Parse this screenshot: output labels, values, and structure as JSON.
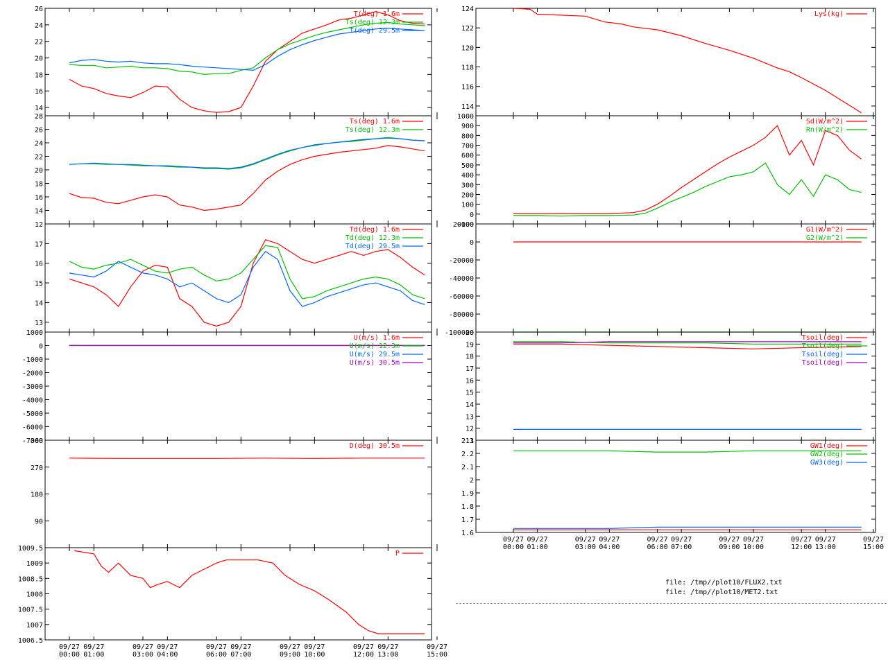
{
  "x_ticks": [
    {
      "date": "09/27",
      "time": "00:00"
    },
    {
      "date": "09/27",
      "time": "01:00"
    },
    {
      "date": "09/27",
      "time": "03:00"
    },
    {
      "date": "09/27",
      "time": "04:00"
    },
    {
      "date": "09/27",
      "time": "06:00"
    },
    {
      "date": "09/27",
      "time": "07:00"
    },
    {
      "date": "09/27",
      "time": "09:00"
    },
    {
      "date": "09/27",
      "time": "10:00"
    },
    {
      "date": "09/27",
      "time": "12:00"
    },
    {
      "date": "09/27",
      "time": "13:00"
    },
    {
      "date": "09/27",
      "time": "15:00"
    }
  ],
  "x_tick_hours": [
    0,
    1,
    3,
    4,
    6,
    7,
    9,
    10,
    12,
    13,
    15
  ],
  "files": [
    "file: /tmp//plot10/FLUX2.txt",
    "file: /tmp//plot10/MET2.txt"
  ],
  "chart_data": [
    {
      "type": "line",
      "column": "left",
      "ylim": [
        13,
        26
      ],
      "yticks": [
        "14",
        "16",
        "18",
        "20",
        "22",
        "24",
        "26"
      ],
      "x": [
        0,
        0.5,
        1,
        1.5,
        2,
        2.5,
        3,
        3.5,
        4,
        4.5,
        5,
        5.5,
        6,
        6.5,
        7,
        7.5,
        8,
        8.5,
        9,
        9.5,
        10,
        10.5,
        11,
        11.5,
        12,
        12.5,
        13,
        13.5,
        14,
        14.5
      ],
      "series": [
        {
          "name": "T(deg)  1.6m",
          "color": "#ff0000",
          "values": [
            17.4,
            16.6,
            16.3,
            15.7,
            15.4,
            15.2,
            15.8,
            16.6,
            16.5,
            15.0,
            14.0,
            13.6,
            13.4,
            13.5,
            14.0,
            16.6,
            19.6,
            21.0,
            22.0,
            23.0,
            23.5,
            24.0,
            24.6,
            24.8,
            25.2,
            25.6,
            25.2,
            24.5,
            24.2,
            24.1
          ]
        },
        {
          "name": "Ts(deg) 12.3m",
          "color": "#00c000",
          "values": [
            19.2,
            19.1,
            19.1,
            18.8,
            18.9,
            19.0,
            18.8,
            18.8,
            18.7,
            18.4,
            18.3,
            18.0,
            18.1,
            18.1,
            18.5,
            18.8,
            20.0,
            21.0,
            21.7,
            22.2,
            22.7,
            23.1,
            23.4,
            23.7,
            24.0,
            24.2,
            24.3,
            24.1,
            24.0,
            23.9
          ]
        },
        {
          "name": "T(deg) 29.5m",
          "color": "#0066ff",
          "values": [
            19.4,
            19.7,
            19.8,
            19.6,
            19.5,
            19.6,
            19.4,
            19.3,
            19.3,
            19.2,
            19.0,
            18.9,
            18.8,
            18.7,
            18.6,
            18.5,
            19.2,
            20.2,
            21.0,
            21.6,
            22.1,
            22.5,
            22.9,
            23.1,
            23.3,
            23.5,
            23.6,
            23.5,
            23.4,
            23.3
          ]
        }
      ]
    },
    {
      "type": "line",
      "column": "left",
      "ylim": [
        12,
        28
      ],
      "yticks": [
        "12",
        "14",
        "16",
        "18",
        "20",
        "22",
        "24",
        "26",
        "28"
      ],
      "x": [
        0,
        0.5,
        1,
        1.5,
        2,
        2.5,
        3,
        3.5,
        4,
        4.5,
        5,
        5.5,
        6,
        6.5,
        7,
        7.5,
        8,
        8.5,
        9,
        9.5,
        10,
        10.5,
        11,
        11.5,
        12,
        12.5,
        13,
        13.5,
        14,
        14.5
      ],
      "series": [
        {
          "name": "Ts(deg)  1.6m",
          "color": "#ff0000",
          "values": [
            16.5,
            15.9,
            15.8,
            15.2,
            15.0,
            15.5,
            16.0,
            16.3,
            16.0,
            14.8,
            14.5,
            14.0,
            14.2,
            14.5,
            14.8,
            16.5,
            18.5,
            19.8,
            20.8,
            21.5,
            22.0,
            22.3,
            22.6,
            22.8,
            23.0,
            23.2,
            23.6,
            23.4,
            23.1,
            22.8
          ]
        },
        {
          "name": "Ts(deg) 12.3m",
          "color": "#00c000",
          "values": [
            20.8,
            20.9,
            20.9,
            20.8,
            20.8,
            20.7,
            20.6,
            20.6,
            20.5,
            20.4,
            20.4,
            20.2,
            20.2,
            20.1,
            20.3,
            20.8,
            21.5,
            22.2,
            22.8,
            23.3,
            23.6,
            23.9,
            24.1,
            24.2,
            24.4,
            24.6,
            24.8,
            24.6,
            24.4,
            24.3
          ]
        },
        {
          "name": "",
          "color": "#0066ff",
          "values": [
            20.8,
            20.9,
            21.0,
            20.9,
            20.8,
            20.8,
            20.7,
            20.6,
            20.6,
            20.5,
            20.4,
            20.3,
            20.3,
            20.2,
            20.4,
            20.9,
            21.6,
            22.3,
            22.9,
            23.3,
            23.7,
            23.9,
            24.1,
            24.3,
            24.5,
            24.6,
            24.7,
            24.6,
            24.4,
            24.3
          ]
        }
      ]
    },
    {
      "type": "line",
      "column": "left",
      "ylim": [
        12.5,
        18
      ],
      "yticks": [
        "13",
        "14",
        "15",
        "16",
        "17"
      ],
      "x": [
        0,
        0.5,
        1,
        1.5,
        2,
        2.5,
        3,
        3.5,
        4,
        4.5,
        5,
        5.5,
        6,
        6.5,
        7,
        7.5,
        8,
        8.5,
        9,
        9.5,
        10,
        10.5,
        11,
        11.5,
        12,
        12.5,
        13,
        13.5,
        14,
        14.5
      ],
      "series": [
        {
          "name": "Td(deg)  1.6m",
          "color": "#ff0000",
          "values": [
            15.2,
            15.0,
            14.8,
            14.4,
            13.8,
            14.8,
            15.6,
            15.9,
            15.8,
            14.2,
            13.8,
            13.0,
            12.8,
            13.0,
            13.8,
            16.0,
            17.2,
            17.0,
            16.6,
            16.2,
            16.0,
            16.2,
            16.4,
            16.6,
            16.4,
            16.6,
            16.7,
            16.3,
            15.8,
            15.4
          ]
        },
        {
          "name": "Td(deg) 12.3m",
          "color": "#00c000",
          "values": [
            16.1,
            15.8,
            15.7,
            15.9,
            16.0,
            16.2,
            15.9,
            15.6,
            15.5,
            15.7,
            15.8,
            15.4,
            15.1,
            15.2,
            15.5,
            16.2,
            16.9,
            16.8,
            15.2,
            14.2,
            14.3,
            14.6,
            14.8,
            15.0,
            15.2,
            15.3,
            15.2,
            14.9,
            14.4,
            14.2
          ]
        },
        {
          "name": "Td(deg) 29.5m",
          "color": "#0066ff",
          "values": [
            15.5,
            15.4,
            15.3,
            15.6,
            16.1,
            15.8,
            15.5,
            15.4,
            15.2,
            14.8,
            15.0,
            14.6,
            14.2,
            14.0,
            14.4,
            15.8,
            16.6,
            16.2,
            14.6,
            13.8,
            14.0,
            14.3,
            14.5,
            14.7,
            14.9,
            15.0,
            14.8,
            14.6,
            14.1,
            13.9
          ]
        }
      ]
    },
    {
      "type": "line",
      "column": "left",
      "ylim": [
        -7000,
        1000
      ],
      "yticks": [
        "-7000",
        "-6000",
        "-5000",
        "-4000",
        "-3000",
        "-2000",
        "-1000",
        "0",
        "1000"
      ],
      "x": [
        0,
        14.5
      ],
      "series": [
        {
          "name": "U(m/s)  1.6m",
          "color": "#ff0000",
          "values": [
            2,
            2
          ]
        },
        {
          "name": "U(m/s) 12.3m",
          "color": "#00c000",
          "values": [
            3,
            3
          ]
        },
        {
          "name": "U(m/s) 29.5m",
          "color": "#0066ff",
          "values": [
            4,
            4
          ]
        },
        {
          "name": "U(m/s) 30.5m",
          "color": "#a000c0",
          "values": [
            5,
            5
          ]
        }
      ]
    },
    {
      "type": "line",
      "column": "left",
      "ylim": [
        0,
        360
      ],
      "yticks": [
        "90",
        "180",
        "270",
        "360"
      ],
      "x": [
        0,
        2,
        4,
        6,
        8,
        10,
        12,
        14.5
      ],
      "series": [
        {
          "name": "D(deg)  30.5m",
          "color": "#ff0000",
          "values": [
            300,
            299,
            299,
            299,
            300,
            299,
            300,
            300
          ]
        }
      ]
    },
    {
      "type": "line",
      "column": "left",
      "ylim": [
        1006.5,
        1009.5
      ],
      "yticks": [
        "1006.5",
        "1007",
        "1007.5",
        "1008",
        "1008.5",
        "1009",
        "1009.5"
      ],
      "x": [
        0.2,
        1.0,
        1.3,
        1.6,
        2.0,
        2.5,
        3.0,
        3.3,
        3.6,
        4.0,
        4.5,
        5.0,
        5.5,
        6.0,
        6.4,
        7.0,
        7.7,
        8.3,
        8.8,
        9.4,
        10.0,
        10.6,
        11.3,
        11.8,
        12.2,
        12.6,
        13.0,
        14.5
      ],
      "series": [
        {
          "name": "P",
          "color": "#ff0000",
          "values": [
            1009.4,
            1009.3,
            1008.9,
            1008.7,
            1009.0,
            1008.6,
            1008.5,
            1008.2,
            1008.3,
            1008.4,
            1008.2,
            1008.6,
            1008.8,
            1009.0,
            1009.1,
            1009.1,
            1009.1,
            1009.0,
            1008.6,
            1008.3,
            1008.1,
            1007.8,
            1007.4,
            1007.0,
            1006.8,
            1006.7,
            1006.7,
            1006.7
          ]
        }
      ]
    },
    {
      "type": "line",
      "column": "right",
      "ylim": [
        113,
        124
      ],
      "yticks": [
        "114",
        "116",
        "118",
        "120",
        "122",
        "124"
      ],
      "x": [
        0,
        0.7,
        1.0,
        2.0,
        3.0,
        3.8,
        4.5,
        5.0,
        6.0,
        7.0,
        8.0,
        9.0,
        10.0,
        11.0,
        11.5,
        12.0,
        13.0,
        14.5
      ],
      "series": [
        {
          "name": "Lys(kg)",
          "color": "#ff0000",
          "values": [
            124.0,
            123.9,
            123.4,
            123.3,
            123.2,
            122.6,
            122.4,
            122.1,
            121.8,
            121.2,
            120.4,
            119.7,
            118.9,
            117.9,
            117.5,
            116.9,
            115.6,
            113.3
          ]
        }
      ]
    },
    {
      "type": "line",
      "column": "right",
      "ylim": [
        -100,
        1000
      ],
      "yticks": [
        "-100",
        "0",
        "100",
        "200",
        "300",
        "400",
        "500",
        "600",
        "700",
        "800",
        "900",
        "1000"
      ],
      "x": [
        0,
        1,
        2,
        3,
        4,
        5,
        5.5,
        6,
        6.5,
        7,
        7.5,
        8,
        8.5,
        9,
        9.5,
        10,
        10.5,
        11,
        11.5,
        12,
        12.5,
        13,
        13.5,
        14,
        14.5
      ],
      "series": [
        {
          "name": "Sd(W/m^2)",
          "color": "#ff0000",
          "values": [
            5,
            5,
            5,
            5,
            5,
            15,
            40,
            100,
            180,
            270,
            350,
            430,
            510,
            580,
            640,
            700,
            780,
            900,
            600,
            750,
            500,
            850,
            800,
            650,
            560
          ]
        },
        {
          "name": "Rn(W/m^2)",
          "color": "#00c000",
          "values": [
            -15,
            -15,
            -20,
            -15,
            -15,
            -10,
            10,
            60,
            120,
            170,
            220,
            280,
            330,
            380,
            400,
            430,
            520,
            300,
            200,
            350,
            180,
            400,
            350,
            250,
            220
          ]
        }
      ]
    },
    {
      "type": "line",
      "column": "right",
      "ylim": [
        -100000,
        20000
      ],
      "yticks": [
        "-100000",
        "-80000",
        "-60000",
        "-40000",
        "-20000",
        "0",
        "20000"
      ],
      "x": [
        0,
        13.0,
        14.5
      ],
      "series": [
        {
          "name": "G1(W/m^2)",
          "color": "#ff0000",
          "values": [
            0,
            0,
            0
          ]
        },
        {
          "name": "G2(W/m^2)",
          "color": "#00c000",
          "values": [
            -99999,
            -99999,
            -99999
          ]
        }
      ]
    },
    {
      "type": "line",
      "column": "right",
      "ylim": [
        11,
        20
      ],
      "yticks": [
        "11",
        "12",
        "13",
        "14",
        "15",
        "16",
        "17",
        "18",
        "19",
        "20"
      ],
      "x": [
        0,
        2,
        4,
        6,
        8,
        10,
        12,
        14.5
      ],
      "series": [
        {
          "name": "Tsoil(deg)",
          "color": "#ff0000",
          "values": [
            19.0,
            19.0,
            18.9,
            18.8,
            18.7,
            18.6,
            18.7,
            18.8
          ]
        },
        {
          "name": "Tsoil(deg)",
          "color": "#00c000",
          "values": [
            19.2,
            19.2,
            19.1,
            19.1,
            19.1,
            19.0,
            19.0,
            19.0
          ]
        },
        {
          "name": "Tsoil(deg)",
          "color": "#0066ff",
          "values": [
            11.9,
            11.9,
            11.9,
            11.9,
            11.9,
            11.9,
            11.9,
            11.9
          ]
        },
        {
          "name": "Tsoil(deg)",
          "color": "#a000c0",
          "values": [
            19.1,
            19.1,
            19.2,
            19.2,
            19.2,
            19.2,
            19.2,
            19.2
          ]
        }
      ]
    },
    {
      "type": "line",
      "column": "right",
      "ylim": [
        1.6,
        2.3
      ],
      "yticks": [
        "1.6",
        "1.7",
        "1.8",
        "1.9",
        "2",
        "2.1",
        "2.2",
        "2.3"
      ],
      "x": [
        0,
        4,
        6,
        8,
        10,
        12,
        14.5
      ],
      "series": [
        {
          "name": "GW1(deg)",
          "color": "#ff0000",
          "values": [
            1.62,
            1.62,
            1.62,
            1.62,
            1.62,
            1.62,
            1.62
          ]
        },
        {
          "name": "GW2(deg)",
          "color": "#00c000",
          "values": [
            2.22,
            2.22,
            2.21,
            2.21,
            2.22,
            2.22,
            2.22
          ]
        },
        {
          "name": "GW3(deg)",
          "color": "#0066ff",
          "values": [
            1.63,
            1.63,
            1.64,
            1.64,
            1.64,
            1.64,
            1.64
          ]
        }
      ]
    }
  ]
}
